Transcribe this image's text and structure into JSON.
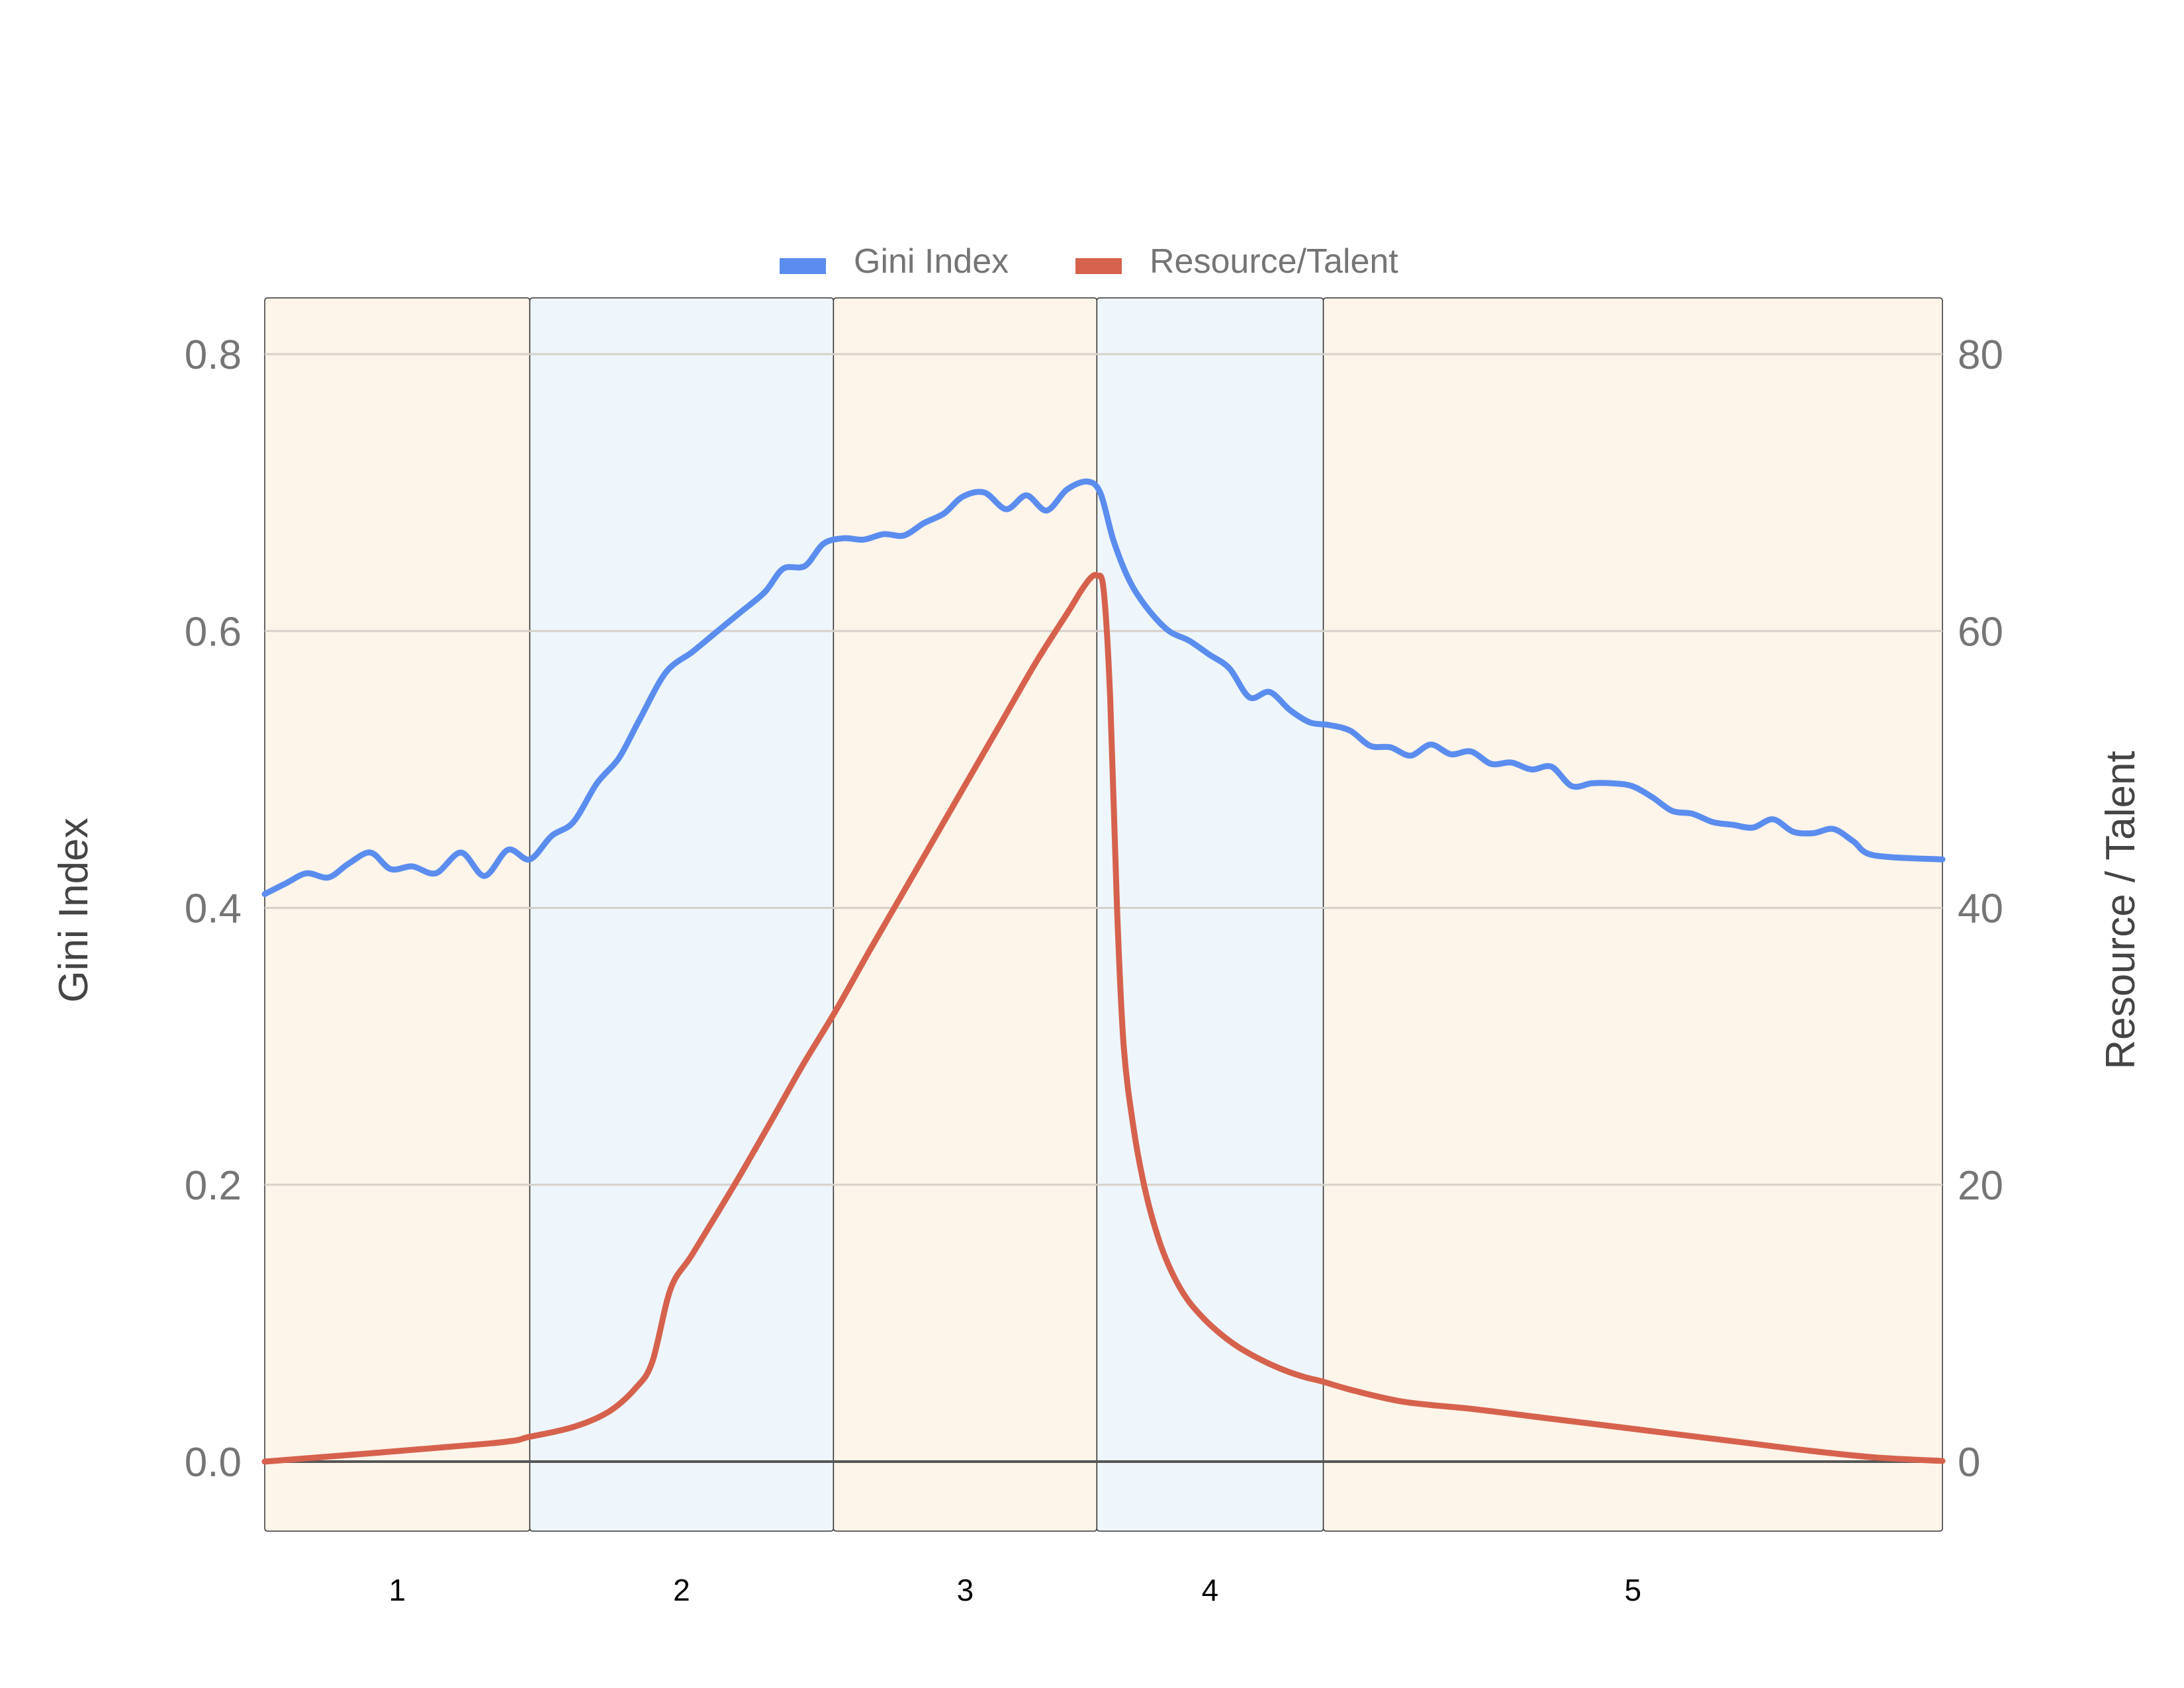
{
  "chart_data": {
    "type": "line",
    "xlim": [
      0,
      100
    ],
    "left_axis": {
      "label": "Gini Index",
      "ylim": [
        0,
        0.8
      ],
      "ticks": [
        "0.0",
        "0.2",
        "0.4",
        "0.6",
        "0.8"
      ]
    },
    "right_axis": {
      "label": "Resource / Talent",
      "ylim": [
        0,
        80
      ],
      "ticks": [
        "0",
        "20",
        "40",
        "60",
        "80"
      ]
    },
    "grid": true,
    "legend_position": "top-center",
    "phases": [
      {
        "label": "1",
        "x_start": 0,
        "x_end": 15.8,
        "color": "#fdf4ea"
      },
      {
        "label": "2",
        "x_start": 15.8,
        "x_end": 33.9,
        "color": "#eef6fc"
      },
      {
        "label": "3",
        "x_start": 33.9,
        "x_end": 49.6,
        "color": "#fdf4ea"
      },
      {
        "label": "4",
        "x_start": 49.6,
        "x_end": 63.1,
        "color": "#eef6fc"
      },
      {
        "label": "5",
        "x_start": 63.1,
        "x_end": 100,
        "color": "#fdf4ea"
      }
    ],
    "series": [
      {
        "name": "Gini Index",
        "axis": "left",
        "color": "#5b8def",
        "points": [
          [
            0,
            0.41
          ],
          [
            1.3,
            0.418
          ],
          [
            2.5,
            0.425
          ],
          [
            3.8,
            0.422
          ],
          [
            5,
            0.432
          ],
          [
            6.3,
            0.44
          ],
          [
            7.5,
            0.428
          ],
          [
            8.8,
            0.43
          ],
          [
            10.2,
            0.425
          ],
          [
            11.7,
            0.44
          ],
          [
            13.1,
            0.423
          ],
          [
            14.5,
            0.442
          ],
          [
            15.8,
            0.435
          ],
          [
            17.1,
            0.452
          ],
          [
            18.4,
            0.462
          ],
          [
            19.8,
            0.49
          ],
          [
            21.1,
            0.508
          ],
          [
            22.3,
            0.535
          ],
          [
            23.9,
            0.57
          ],
          [
            25.5,
            0.585
          ],
          [
            26.8,
            0.598
          ],
          [
            28.3,
            0.613
          ],
          [
            29.8,
            0.628
          ],
          [
            30.9,
            0.645
          ],
          [
            32.2,
            0.647
          ],
          [
            33.3,
            0.663
          ],
          [
            34.5,
            0.667
          ],
          [
            35.7,
            0.666
          ],
          [
            36.9,
            0.67
          ],
          [
            38.1,
            0.669
          ],
          [
            39.3,
            0.678
          ],
          [
            40.5,
            0.685
          ],
          [
            41.6,
            0.697
          ],
          [
            42.9,
            0.7
          ],
          [
            44.2,
            0.688
          ],
          [
            45.4,
            0.698
          ],
          [
            46.6,
            0.687
          ],
          [
            47.8,
            0.702
          ],
          [
            49,
            0.708
          ],
          [
            49.8,
            0.7
          ],
          [
            50.6,
            0.665
          ],
          [
            51.6,
            0.635
          ],
          [
            52.7,
            0.615
          ],
          [
            53.9,
            0.6
          ],
          [
            55.1,
            0.593
          ],
          [
            56.3,
            0.583
          ],
          [
            57.5,
            0.573
          ],
          [
            58.7,
            0.552
          ],
          [
            59.9,
            0.556
          ],
          [
            61.1,
            0.543
          ],
          [
            62.3,
            0.534
          ],
          [
            63.5,
            0.532
          ],
          [
            64.7,
            0.528
          ],
          [
            65.9,
            0.517
          ],
          [
            67.1,
            0.516
          ],
          [
            68.3,
            0.51
          ],
          [
            69.5,
            0.518
          ],
          [
            70.7,
            0.511
          ],
          [
            71.9,
            0.513
          ],
          [
            73.1,
            0.504
          ],
          [
            74.3,
            0.505
          ],
          [
            75.5,
            0.5
          ],
          [
            76.7,
            0.502
          ],
          [
            77.9,
            0.488
          ],
          [
            79.1,
            0.49
          ],
          [
            80.3,
            0.49
          ],
          [
            81.5,
            0.488
          ],
          [
            82.7,
            0.48
          ],
          [
            83.9,
            0.47
          ],
          [
            85.1,
            0.468
          ],
          [
            86.3,
            0.462
          ],
          [
            87.5,
            0.46
          ],
          [
            88.7,
            0.458
          ],
          [
            89.9,
            0.464
          ],
          [
            91.1,
            0.455
          ],
          [
            92.3,
            0.454
          ],
          [
            93.5,
            0.457
          ],
          [
            94.7,
            0.448
          ],
          [
            95.9,
            0.438
          ],
          [
            100,
            0.435
          ]
        ]
      },
      {
        "name": "Resource/Talent",
        "axis": "right",
        "color": "#d6624d",
        "points": [
          [
            0,
            0
          ],
          [
            13.3,
            1.3
          ],
          [
            15.8,
            1.8
          ],
          [
            18.4,
            2.5
          ],
          [
            20.5,
            3.6
          ],
          [
            22.1,
            5.3
          ],
          [
            23.1,
            7.2
          ],
          [
            24.2,
            12.5
          ],
          [
            25.5,
            15
          ],
          [
            28,
            20
          ],
          [
            30,
            24.2
          ],
          [
            32,
            28.5
          ],
          [
            34,
            32.5
          ],
          [
            36,
            36.8
          ],
          [
            38,
            41
          ],
          [
            40,
            45.2
          ],
          [
            42,
            49.4
          ],
          [
            44,
            53.6
          ],
          [
            46,
            57.8
          ],
          [
            48,
            61.6
          ],
          [
            48.6,
            62.8
          ],
          [
            49.2,
            63.8
          ],
          [
            49.6,
            64
          ],
          [
            50,
            63
          ],
          [
            50.4,
            55
          ],
          [
            50.8,
            40
          ],
          [
            51.2,
            30
          ],
          [
            51.8,
            24
          ],
          [
            52.5,
            19.5
          ],
          [
            53.3,
            16
          ],
          [
            54.1,
            13.6
          ],
          [
            55,
            11.7
          ],
          [
            56,
            10.3
          ],
          [
            57,
            9.2
          ],
          [
            58,
            8.3
          ],
          [
            59,
            7.6
          ],
          [
            60,
            7
          ],
          [
            61,
            6.5
          ],
          [
            62,
            6.1
          ],
          [
            63,
            5.8
          ],
          [
            65,
            5.1
          ],
          [
            68,
            4.3
          ],
          [
            72,
            3.8
          ],
          [
            76,
            3.2
          ],
          [
            80,
            2.6
          ],
          [
            84,
            2
          ],
          [
            88,
            1.4
          ],
          [
            92,
            0.8
          ],
          [
            96,
            0.3
          ],
          [
            100,
            0.05
          ]
        ]
      }
    ]
  }
}
